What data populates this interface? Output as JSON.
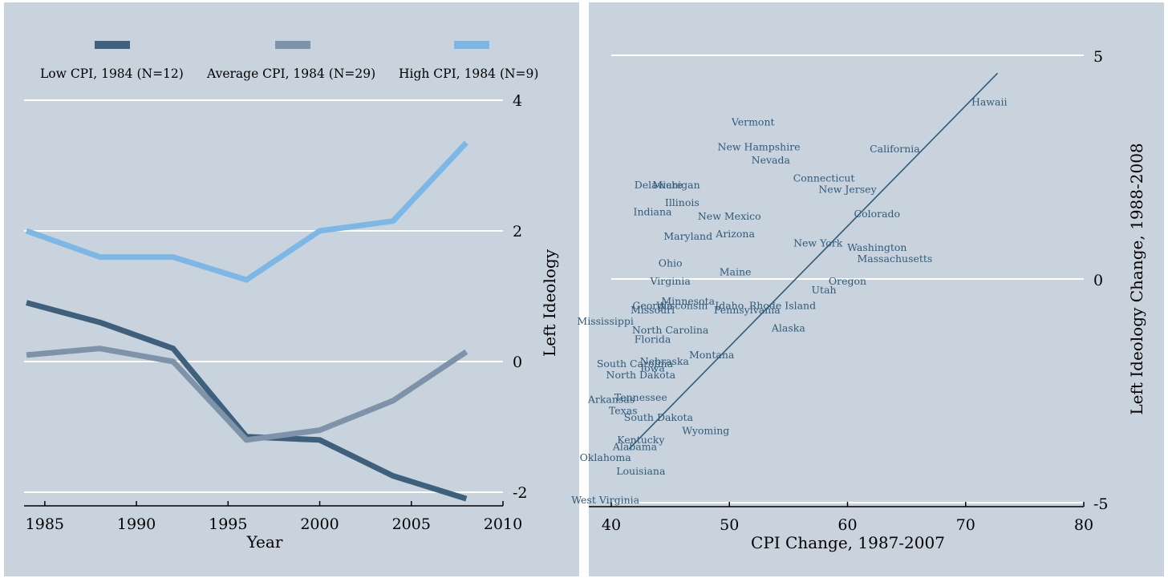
{
  "chart_data": [
    {
      "type": "line",
      "title": "",
      "xlabel": "Year",
      "ylabel": "Left Ideology",
      "xlim": [
        1984,
        2010
      ],
      "ylim": [
        -2,
        4
      ],
      "xticks": [
        "1985",
        "1990",
        "1995",
        "2000",
        "2005",
        "2010"
      ],
      "yticks": [
        "-2",
        "0",
        "2",
        "4"
      ],
      "grid": "horizontal",
      "legend_position": "top",
      "x": [
        1984,
        1988,
        1992,
        1996,
        2000,
        2004,
        2008
      ],
      "series": [
        {
          "name": "Low CPI, 1984 (N=12)",
          "color": "#3f607c",
          "values": [
            0.9,
            0.6,
            0.2,
            -1.15,
            -1.2,
            -1.75,
            -2.1
          ]
        },
        {
          "name": "Average CPI, 1984 (N=29)",
          "color": "#7e93aa",
          "values": [
            0.1,
            0.2,
            0.0,
            -1.2,
            -1.05,
            -0.6,
            0.15
          ]
        },
        {
          "name": "High CPI, 1984 (N=9)",
          "color": "#7cb7e5",
          "values": [
            2.0,
            1.6,
            1.6,
            1.25,
            2.0,
            2.15,
            3.35
          ]
        }
      ]
    },
    {
      "type": "scatter",
      "title": "",
      "xlabel": "CPI Change, 1987-2007",
      "ylabel": "Left Ideology Change, 1988-2008",
      "xlim": [
        40,
        80
      ],
      "ylim": [
        -5,
        5
      ],
      "xticks": [
        "40",
        "50",
        "60",
        "70",
        "80"
      ],
      "yticks": [
        "-5",
        "0",
        "5"
      ],
      "grid": "horizontal",
      "trend_line": {
        "x": [
          41.5,
          72.7
        ],
        "y": [
          -3.8,
          4.6
        ],
        "color": "#2f5b7a"
      },
      "points": [
        {
          "label": "Hawaii",
          "x": 72,
          "y": 3.95
        },
        {
          "label": "Vermont",
          "x": 52,
          "y": 3.5
        },
        {
          "label": "New Hampshire",
          "x": 52.5,
          "y": 2.95
        },
        {
          "label": "California",
          "x": 64,
          "y": 2.9
        },
        {
          "label": "Nevada",
          "x": 53.5,
          "y": 2.65
        },
        {
          "label": "Connecticut",
          "x": 58,
          "y": 2.25
        },
        {
          "label": "Delaware",
          "x": 44,
          "y": 2.1
        },
        {
          "label": "Michigan",
          "x": 45.5,
          "y": 2.1
        },
        {
          "label": "New Jersey",
          "x": 60,
          "y": 2.0
        },
        {
          "label": "Illinois",
          "x": 46,
          "y": 1.7
        },
        {
          "label": "Indiana",
          "x": 43.5,
          "y": 1.5
        },
        {
          "label": "New Mexico",
          "x": 50,
          "y": 1.4
        },
        {
          "label": "Colorado",
          "x": 62.5,
          "y": 1.45
        },
        {
          "label": "Maryland",
          "x": 46.5,
          "y": 0.95
        },
        {
          "label": "Arizona",
          "x": 50.5,
          "y": 1.0
        },
        {
          "label": "New York",
          "x": 57.5,
          "y": 0.8
        },
        {
          "label": "Washington",
          "x": 62.5,
          "y": 0.7
        },
        {
          "label": "Massachusetts",
          "x": 64,
          "y": 0.45
        },
        {
          "label": "Ohio",
          "x": 45,
          "y": 0.35
        },
        {
          "label": "Maine",
          "x": 50.5,
          "y": 0.15
        },
        {
          "label": "Virginia",
          "x": 45,
          "y": -0.05
        },
        {
          "label": "Oregon",
          "x": 60,
          "y": -0.05
        },
        {
          "label": "Utah",
          "x": 58,
          "y": -0.25
        },
        {
          "label": "Minnesota",
          "x": 46.5,
          "y": -0.5
        },
        {
          "label": "Georgia",
          "x": 43.5,
          "y": -0.6
        },
        {
          "label": "Wisconsin",
          "x": 46,
          "y": -0.6
        },
        {
          "label": "Idaho",
          "x": 50,
          "y": -0.6
        },
        {
          "label": "Rhode Island",
          "x": 54.5,
          "y": -0.6
        },
        {
          "label": "Pennsylvania",
          "x": 51.5,
          "y": -0.7
        },
        {
          "label": "Missouri",
          "x": 43.5,
          "y": -0.7
        },
        {
          "label": "Mississippi",
          "x": 39.5,
          "y": -0.95
        },
        {
          "label": "North Carolina",
          "x": 45,
          "y": -1.15
        },
        {
          "label": "Alaska",
          "x": 55,
          "y": -1.1
        },
        {
          "label": "Florida",
          "x": 43.5,
          "y": -1.35
        },
        {
          "label": "Montana",
          "x": 48.5,
          "y": -1.7
        },
        {
          "label": "Nebraska",
          "x": 44.5,
          "y": -1.85
        },
        {
          "label": "South Carolina",
          "x": 42,
          "y": -1.9
        },
        {
          "label": "Iowa",
          "x": 43.5,
          "y": -2.0
        },
        {
          "label": "North Dakota",
          "x": 42.5,
          "y": -2.15
        },
        {
          "label": "Tennessee",
          "x": 42.5,
          "y": -2.65
        },
        {
          "label": "Arkansas",
          "x": 40,
          "y": -2.7
        },
        {
          "label": "Texas",
          "x": 41,
          "y": -2.95
        },
        {
          "label": "South Dakota",
          "x": 44,
          "y": -3.1
        },
        {
          "label": "Wyoming",
          "x": 48,
          "y": -3.4
        },
        {
          "label": "Kentucky",
          "x": 42.5,
          "y": -3.6
        },
        {
          "label": "Alabama",
          "x": 42,
          "y": -3.75
        },
        {
          "label": "Oklahoma",
          "x": 39.5,
          "y": -4.0
        },
        {
          "label": "Louisiana",
          "x": 42.5,
          "y": -4.3
        },
        {
          "label": "West Virginia",
          "x": 39.5,
          "y": -4.95
        }
      ]
    }
  ]
}
